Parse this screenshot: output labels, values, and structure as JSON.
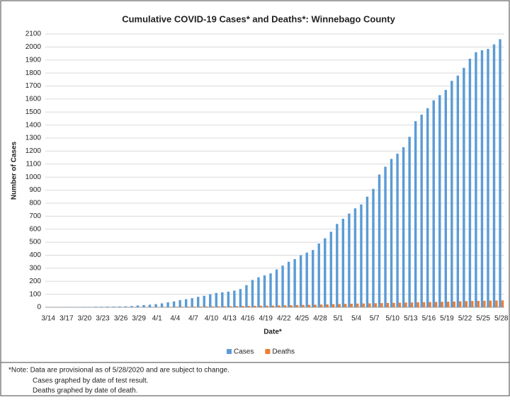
{
  "chart_data": {
    "type": "bar",
    "title": "Cumulative COVID-19 Cases* and Deaths*: Winnebago County",
    "x_label": "Date*",
    "y_label": "Number of Cases",
    "categories": [
      "3/14",
      null,
      null,
      "3/17",
      null,
      null,
      "3/20",
      null,
      null,
      "3/23",
      null,
      null,
      "3/26",
      null,
      null,
      "3/29",
      null,
      null,
      "4/1",
      null,
      null,
      "4/4",
      null,
      null,
      "4/7",
      null,
      null,
      "4/10",
      null,
      null,
      "4/13",
      null,
      null,
      "4/16",
      null,
      null,
      "4/19",
      null,
      null,
      "4/22",
      null,
      null,
      "4/25",
      null,
      null,
      "4/28",
      null,
      null,
      "5/1",
      null,
      null,
      "5/4",
      null,
      null,
      "5/7",
      null,
      null,
      "5/10",
      null,
      null,
      "5/13",
      null,
      null,
      "5/16",
      null,
      null,
      "5/19",
      null,
      null,
      "5/22",
      null,
      null,
      "5/25",
      null,
      null,
      "5/28"
    ],
    "series": [
      {
        "name": "Cases",
        "color": "#5b9bd5",
        "values": [
          1,
          1,
          1,
          2,
          2,
          2,
          3,
          3,
          4,
          4,
          5,
          5,
          6,
          7,
          9,
          14,
          17,
          20,
          24,
          30,
          38,
          45,
          55,
          62,
          70,
          80,
          88,
          100,
          110,
          115,
          120,
          128,
          140,
          170,
          210,
          230,
          245,
          260,
          290,
          320,
          350,
          370,
          400,
          420,
          440,
          490,
          530,
          580,
          640,
          680,
          720,
          760,
          790,
          850,
          910,
          1020,
          1080,
          1140,
          1180,
          1230,
          1310,
          1430,
          1480,
          1530,
          1590,
          1630,
          1670,
          1740,
          1780,
          1840,
          1910,
          1960,
          1975,
          1985,
          2020,
          2060
        ]
      },
      {
        "name": "Deaths",
        "color": "#ed7d31",
        "values": [
          0,
          0,
          0,
          0,
          0,
          0,
          0,
          0,
          0,
          0,
          0,
          0,
          0,
          0,
          0,
          1,
          1,
          2,
          2,
          3,
          3,
          4,
          4,
          5,
          5,
          6,
          6,
          7,
          7,
          8,
          8,
          9,
          10,
          10,
          11,
          12,
          12,
          13,
          14,
          15,
          16,
          17,
          18,
          19,
          20,
          21,
          22,
          24,
          25,
          26,
          27,
          28,
          29,
          30,
          31,
          32,
          33,
          34,
          35,
          36,
          37,
          38,
          39,
          40,
          41,
          42,
          43,
          44,
          46,
          47,
          48,
          49,
          50,
          51,
          52,
          53
        ]
      }
    ],
    "ylim": [
      0,
      2100
    ],
    "yticks": [
      0,
      100,
      200,
      300,
      400,
      500,
      600,
      700,
      800,
      900,
      1000,
      1100,
      1200,
      1300,
      1400,
      1500,
      1600,
      1700,
      1800,
      1900,
      2000,
      2100
    ],
    "grid": true,
    "legend": "bottom",
    "notes": [
      "*Note: Data are provisional as of 5/28/2020 and are subject to change.",
      "Cases graphed by date of test result.",
      "Deaths graphed by date of death."
    ]
  }
}
